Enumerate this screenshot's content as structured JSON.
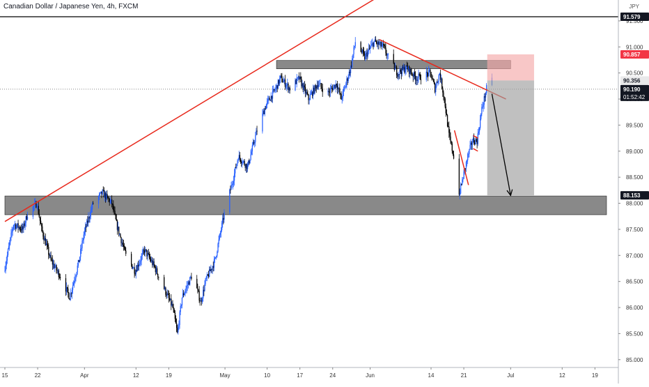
{
  "chart_data": {
    "type": "candlestick",
    "title": "Canadian Dollar / Japanese Yen, 4h, FXCM",
    "currency_label": "JPY",
    "ylim": [
      84.85,
      91.9
    ],
    "y_ticks": [
      85.0,
      85.5,
      86.0,
      86.5,
      87.0,
      87.5,
      88.0,
      88.5,
      89.0,
      89.5,
      90.0,
      90.5,
      91.0,
      91.5
    ],
    "x_start_date": "2021-03-15",
    "x_end_date": "2021-07-24",
    "x_ticks": [
      {
        "date": "2021-03-15",
        "label": "15"
      },
      {
        "date": "2021-03-22",
        "label": "22"
      },
      {
        "date": "2021-04-01",
        "label": "Apr"
      },
      {
        "date": "2021-04-12",
        "label": "12"
      },
      {
        "date": "2021-04-19",
        "label": "19"
      },
      {
        "date": "2021-05-01",
        "label": "May"
      },
      {
        "date": "2021-05-10",
        "label": "10"
      },
      {
        "date": "2021-05-17",
        "label": "17"
      },
      {
        "date": "2021-05-24",
        "label": "24"
      },
      {
        "date": "2021-06-01",
        "label": "Jun"
      },
      {
        "date": "2021-06-14",
        "label": "14"
      },
      {
        "date": "2021-06-21",
        "label": "21"
      },
      {
        "date": "2021-07-01",
        "label": "Jul"
      },
      {
        "date": "2021-07-12",
        "label": "12"
      },
      {
        "date": "2021-07-19",
        "label": "19"
      }
    ],
    "price_path": [
      [
        "2021-03-15",
        86.7
      ],
      [
        "2021-03-17",
        87.6
      ],
      [
        "2021-03-19",
        87.5
      ],
      [
        "2021-03-20",
        87.8
      ],
      [
        "2021-03-22",
        88.0
      ],
      [
        "2021-03-23",
        87.5
      ],
      [
        "2021-03-25",
        86.9
      ],
      [
        "2021-03-27",
        86.6
      ],
      [
        "2021-03-29",
        86.2
      ],
      [
        "2021-03-31",
        86.9
      ],
      [
        "2021-04-01",
        87.4
      ],
      [
        "2021-04-03",
        88.0
      ],
      [
        "2021-04-05",
        88.2
      ],
      [
        "2021-04-07",
        88.0
      ],
      [
        "2021-04-08",
        87.6
      ],
      [
        "2021-04-10",
        87.0
      ],
      [
        "2021-04-12",
        86.7
      ],
      [
        "2021-04-14",
        87.1
      ],
      [
        "2021-04-16",
        86.8
      ],
      [
        "2021-04-18",
        86.4
      ],
      [
        "2021-04-20",
        86.0
      ],
      [
        "2021-04-21",
        85.5
      ],
      [
        "2021-04-22",
        86.2
      ],
      [
        "2021-04-24",
        86.6
      ],
      [
        "2021-04-25",
        86.4
      ],
      [
        "2021-04-26",
        86.1
      ],
      [
        "2021-04-27",
        86.5
      ],
      [
        "2021-04-29",
        86.9
      ],
      [
        "2021-05-01",
        87.8
      ],
      [
        "2021-05-03",
        88.5
      ],
      [
        "2021-05-04",
        88.9
      ],
      [
        "2021-05-06",
        88.7
      ],
      [
        "2021-05-08",
        89.4
      ],
      [
        "2021-05-10",
        89.9
      ],
      [
        "2021-05-12",
        90.2
      ],
      [
        "2021-05-13",
        90.4
      ],
      [
        "2021-05-15",
        90.2
      ],
      [
        "2021-05-17",
        90.4
      ],
      [
        "2021-05-19",
        90.0
      ],
      [
        "2021-05-21",
        90.3
      ],
      [
        "2021-05-23",
        90.1
      ],
      [
        "2021-05-25",
        90.3
      ],
      [
        "2021-05-26",
        90.0
      ],
      [
        "2021-05-28",
        90.6
      ],
      [
        "2021-05-29",
        91.1
      ],
      [
        "2021-05-31",
        90.8
      ],
      [
        "2021-06-02",
        91.1
      ],
      [
        "2021-06-04",
        91.0
      ],
      [
        "2021-06-05",
        90.8
      ],
      [
        "2021-06-07",
        90.5
      ],
      [
        "2021-06-09",
        90.6
      ],
      [
        "2021-06-11",
        90.4
      ],
      [
        "2021-06-14",
        90.5
      ],
      [
        "2021-06-15",
        90.2
      ],
      [
        "2021-06-16",
        90.5
      ],
      [
        "2021-06-17",
        90.0
      ],
      [
        "2021-06-18",
        89.3
      ],
      [
        "2021-06-19",
        88.9
      ],
      [
        "2021-06-20",
        88.6
      ],
      [
        "2021-06-20",
        88.1
      ],
      [
        "2021-06-21",
        88.5
      ],
      [
        "2021-06-22",
        88.9
      ],
      [
        "2021-06-23",
        89.2
      ],
      [
        "2021-06-24",
        89.2
      ],
      [
        "2021-06-25",
        89.8
      ],
      [
        "2021-06-26",
        90.2
      ],
      [
        "2021-06-27",
        90.35
      ]
    ],
    "price_labels": [
      {
        "value": 91.579,
        "label": "91.579",
        "style": "black"
      },
      {
        "value": 90.857,
        "label": "90.857",
        "style": "red"
      },
      {
        "value": 90.356,
        "label": "90.356",
        "style": "gray"
      },
      {
        "value": 90.19,
        "label": "90.190",
        "style": "black"
      },
      {
        "value": 88.153,
        "label": "88.153",
        "style": "black"
      }
    ],
    "countdown": "01:52:42",
    "horizontal_lines": [
      {
        "value": 91.579,
        "style": "solid-black"
      },
      {
        "value": 90.19,
        "style": "dotted-gray"
      }
    ],
    "zones": [
      {
        "name": "resistance",
        "from_date": "2021-05-12",
        "to_date": "2021-07-01",
        "low": 90.58,
        "high": 90.74
      },
      {
        "name": "support",
        "from_date": "2021-03-15",
        "to_date": "2021-07-24",
        "low": 87.78,
        "high": 88.14
      }
    ],
    "trendlines": [
      {
        "name": "rising-trendline",
        "from": [
          "2021-03-15",
          87.65
        ],
        "to": [
          "2021-06-09",
          92.3
        ]
      },
      {
        "name": "falling-trendline",
        "from": [
          "2021-06-03",
          91.14
        ],
        "to": [
          "2021-06-30",
          90.0
        ]
      },
      {
        "name": "flag-line-1",
        "from": [
          "2021-06-19",
          89.4
        ],
        "to": [
          "2021-06-22",
          88.35
        ]
      },
      {
        "name": "flag-line-2",
        "from": [
          "2021-06-23",
          89.3
        ],
        "to": [
          "2021-06-24",
          89.25
        ]
      },
      {
        "name": "flag-line-3",
        "from": [
          "2021-06-23",
          89.05
        ],
        "to": [
          "2021-06-24",
          89.0
        ]
      }
    ],
    "position": {
      "from_date": "2021-06-26",
      "to_date": "2021-07-06",
      "entry": 90.356,
      "stop": 90.857,
      "target": 88.153
    },
    "arrow": {
      "from": [
        "2021-06-27",
        90.1
      ],
      "to": [
        "2021-07-01",
        88.15
      ]
    }
  }
}
